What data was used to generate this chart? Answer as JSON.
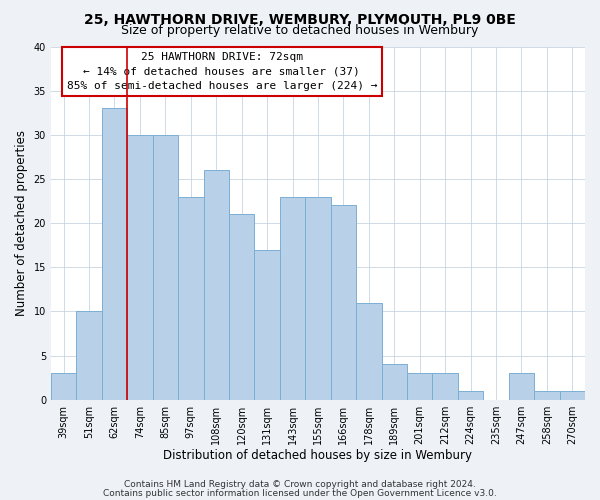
{
  "title": "25, HAWTHORN DRIVE, WEMBURY, PLYMOUTH, PL9 0BE",
  "subtitle": "Size of property relative to detached houses in Wembury",
  "xlabel": "Distribution of detached houses by size in Wembury",
  "ylabel": "Number of detached properties",
  "bar_labels": [
    "39sqm",
    "51sqm",
    "62sqm",
    "74sqm",
    "85sqm",
    "97sqm",
    "108sqm",
    "120sqm",
    "131sqm",
    "143sqm",
    "155sqm",
    "166sqm",
    "178sqm",
    "189sqm",
    "201sqm",
    "212sqm",
    "224sqm",
    "235sqm",
    "247sqm",
    "258sqm",
    "270sqm"
  ],
  "bar_values": [
    3,
    10,
    33,
    30,
    30,
    23,
    26,
    21,
    17,
    23,
    23,
    22,
    11,
    4,
    3,
    3,
    1,
    0,
    3,
    1,
    1
  ],
  "bar_color": "#b8d0e8",
  "bar_edge_color": "#7aafd4",
  "vline_color": "#cc0000",
  "vline_pos": 2.5,
  "annotation_text": "25 HAWTHORN DRIVE: 72sqm\n← 14% of detached houses are smaller (37)\n85% of semi-detached houses are larger (224) →",
  "annotation_box_color": "#ffffff",
  "annotation_box_edge": "#cc0000",
  "ylim": [
    0,
    40
  ],
  "yticks": [
    0,
    5,
    10,
    15,
    20,
    25,
    30,
    35,
    40
  ],
  "footer_line1": "Contains HM Land Registry data © Crown copyright and database right 2024.",
  "footer_line2": "Contains public sector information licensed under the Open Government Licence v3.0.",
  "bg_color": "#eef2f7",
  "plot_bg_color": "#ffffff",
  "title_fontsize": 10,
  "subtitle_fontsize": 9,
  "axis_label_fontsize": 8.5,
  "tick_fontsize": 7,
  "annotation_fontsize": 8,
  "footer_fontsize": 6.5
}
